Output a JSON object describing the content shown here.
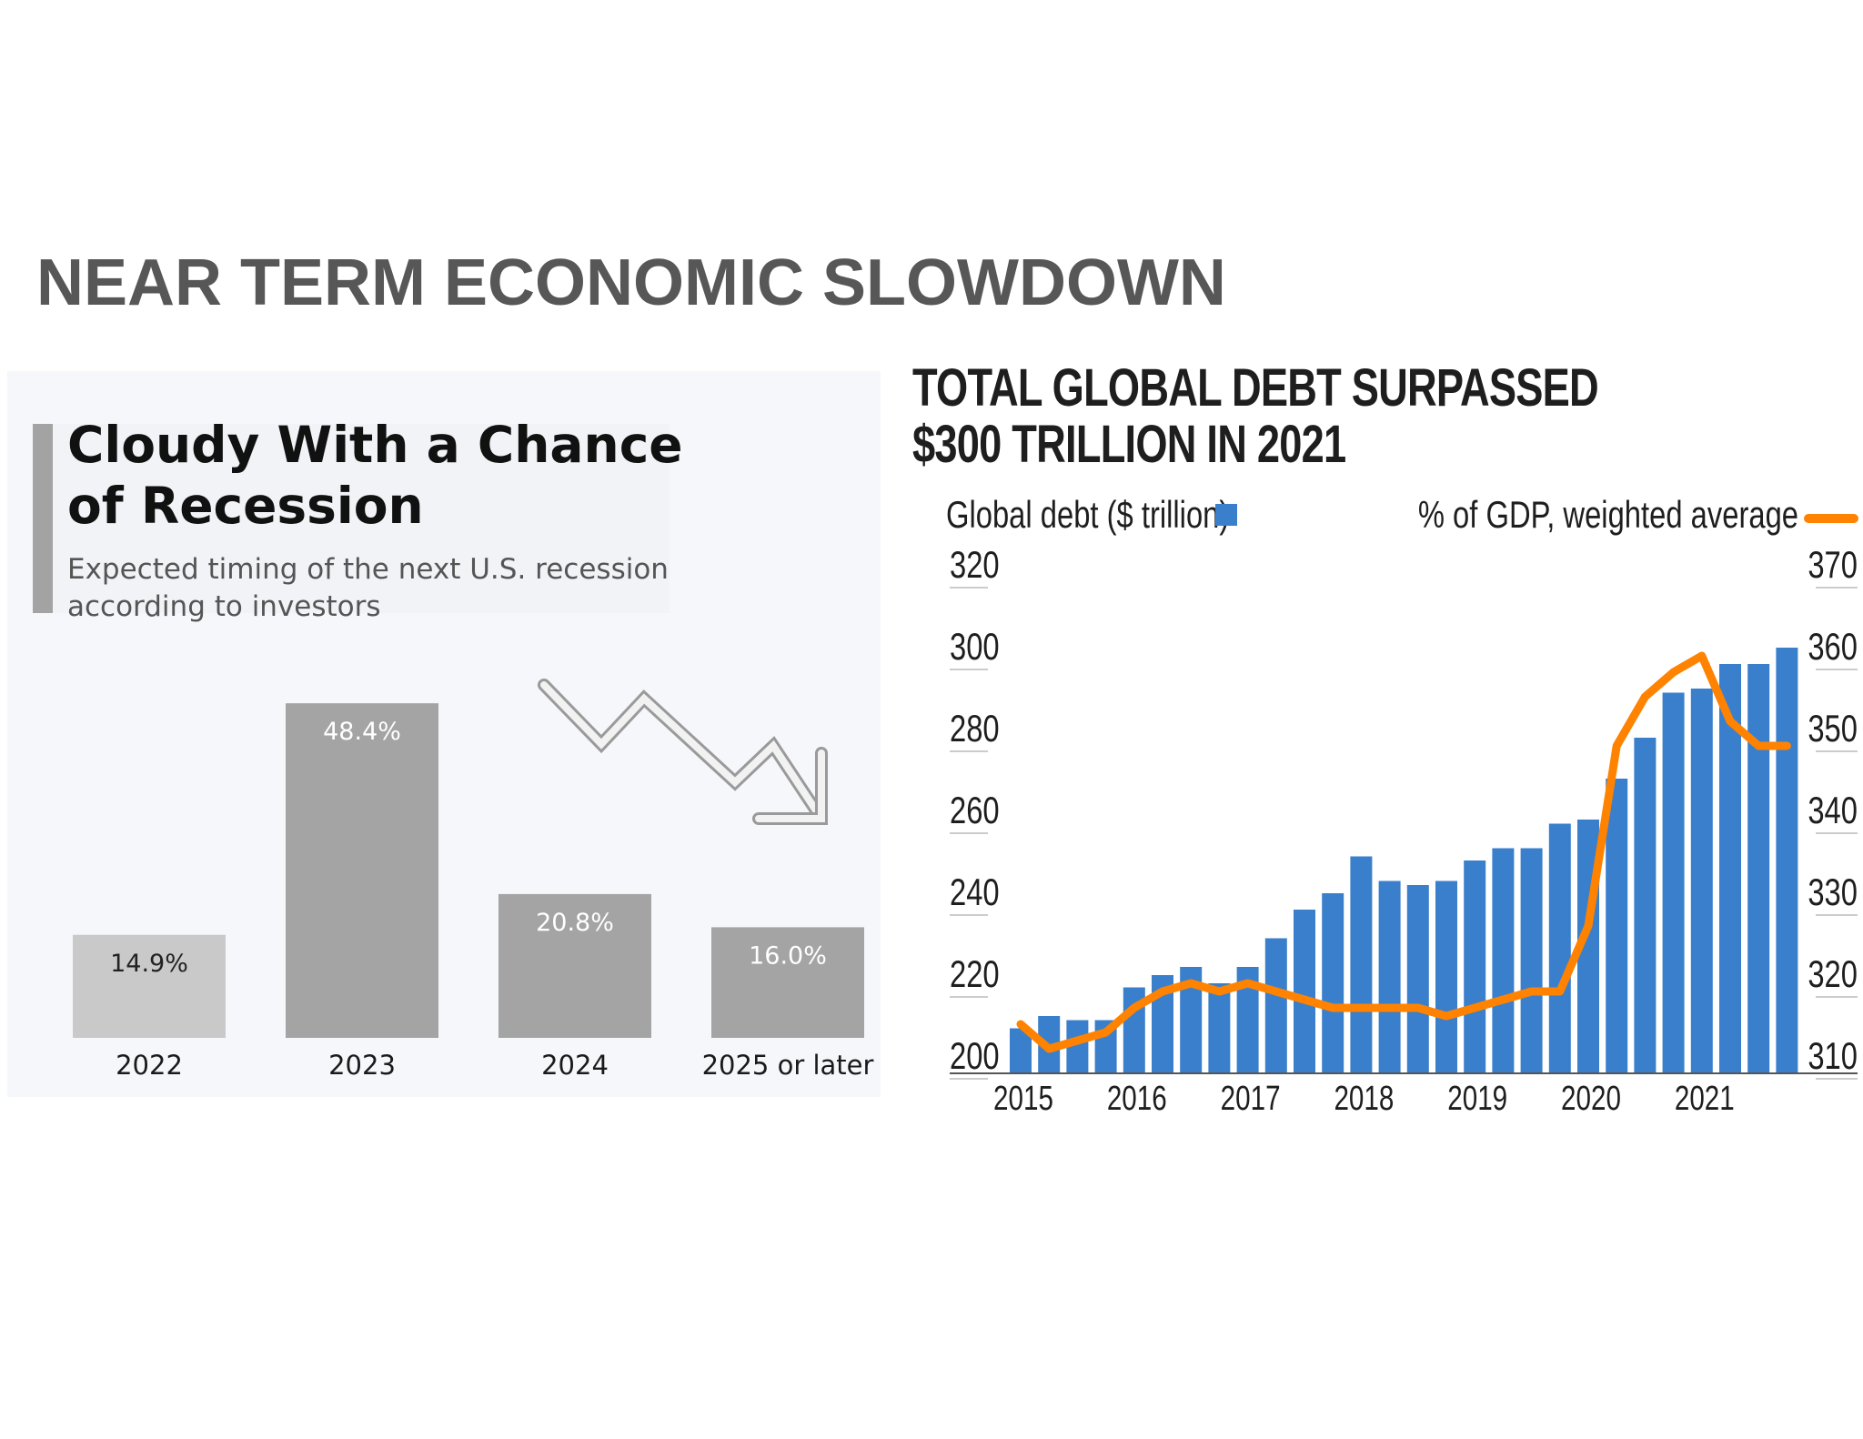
{
  "page": {
    "title": "NEAR TERM ECONOMIC SLOWDOWN"
  },
  "left": {
    "title": "Cloudy With a Chance of Recession",
    "subtitle": "Expected timing of the next U.S. recession according to investors"
  },
  "right": {
    "title": "TOTAL GLOBAL DEBT SURPASSED $300 TRILLION IN 2021"
  },
  "colors": {
    "left_bar_light": "#c9c9c9",
    "left_bar_dark": "#a4a4a4",
    "debt_bar": "#3a7fcc",
    "gdp_line": "#ff8200"
  },
  "chart_data": [
    {
      "type": "bar",
      "title": "Cloudy With a Chance of Recession",
      "subtitle": "Expected timing of the next U.S. recession according to investors",
      "categories": [
        "2022",
        "2023",
        "2024",
        "2025 or later"
      ],
      "values": [
        14.9,
        48.4,
        20.8,
        16.0
      ],
      "value_labels": [
        "14.9%",
        "48.4%",
        "20.8%",
        "16.0%"
      ],
      "unit": "%",
      "ylim": [
        0,
        50
      ],
      "grid": false,
      "legend": "none",
      "icon": "downward-zigzag-arrow-icon"
    },
    {
      "type": "bar",
      "title": "TOTAL GLOBAL DEBT SURPASSED $300 TRILLION IN 2021",
      "x_tick_labels": [
        "2015",
        "2016",
        "2017",
        "2018",
        "2019",
        "2020",
        "2021"
      ],
      "quarters_per_year": 4,
      "left_axis": {
        "label": "Global debt ($ trillion)",
        "ticks": [
          200,
          220,
          240,
          260,
          280,
          300,
          320
        ],
        "ylim": [
          200,
          320
        ]
      },
      "right_axis": {
        "label": "% of GDP, weighted average",
        "ticks": [
          310,
          320,
          330,
          340,
          350,
          360,
          370
        ],
        "ylim": [
          310,
          370
        ]
      },
      "legend": "top",
      "grid": false,
      "series": [
        {
          "name": "Global debt ($ trillion)",
          "type": "bar",
          "axis": "left",
          "values": [
            211,
            214,
            213,
            213,
            221,
            224,
            226,
            222,
            226,
            233,
            240,
            244,
            253,
            247,
            246,
            247,
            252,
            255,
            255,
            261,
            262,
            272,
            282,
            293,
            294,
            300,
            300,
            304
          ]
        },
        {
          "name": "% of GDP, weighted average",
          "type": "line",
          "axis": "right",
          "values": [
            316,
            313,
            314,
            315,
            318,
            320,
            321,
            320,
            321,
            320,
            319,
            318,
            318,
            318,
            318,
            317,
            318,
            319,
            320,
            320,
            328,
            350,
            356,
            359,
            361,
            353,
            350,
            350
          ]
        }
      ]
    }
  ]
}
